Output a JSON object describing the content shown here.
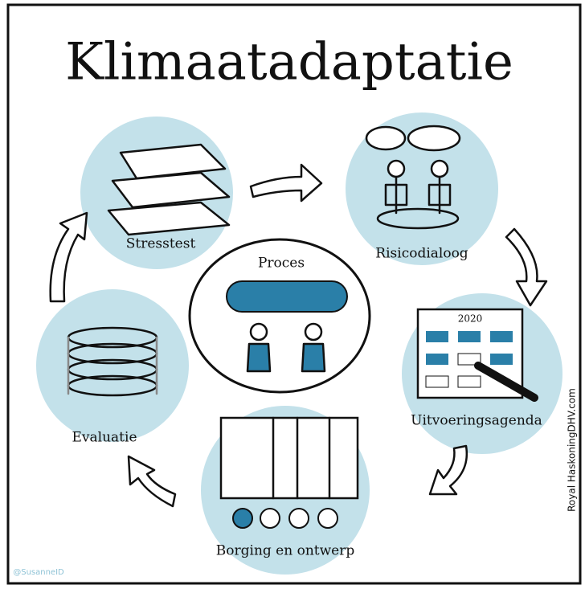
{
  "title": "Klimaatadaptatie",
  "center": {
    "label": "Proces"
  },
  "nodes": [
    {
      "label": "Stresstest"
    },
    {
      "label": "Risicodialoog"
    },
    {
      "label": "Uitvoeringsagenda",
      "year": "2020"
    },
    {
      "label": "Borging en ontwerp"
    },
    {
      "label": "Evaluatie"
    }
  ],
  "credit": "Royal HaskoningDHV.com",
  "signature": "@SusanneID"
}
